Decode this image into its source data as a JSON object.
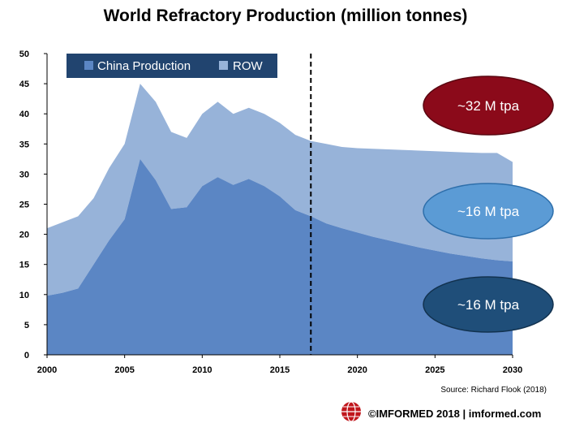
{
  "title": "World Refractory Production (million tonnes)",
  "source": "Source: Richard Flook (2018)",
  "footer": "©IMFORMED 2018  | imformed.com",
  "logo_icon": "globe-logo-icon",
  "colors": {
    "china": "#5b86c4",
    "row": "#97b3d9",
    "legend_bg": "#21446f",
    "ellipse_total": "#8b0a1a",
    "ellipse_row": "#5b9bd5",
    "ellipse_china": "#1f4e79"
  },
  "chart_data": {
    "type": "area",
    "stacked": true,
    "x": [
      2000,
      2001,
      2002,
      2003,
      2004,
      2005,
      2006,
      2007,
      2008,
      2009,
      2010,
      2011,
      2012,
      2013,
      2014,
      2015,
      2016,
      2017,
      2018,
      2019,
      2020,
      2021,
      2022,
      2023,
      2024,
      2025,
      2026,
      2027,
      2028,
      2029,
      2030
    ],
    "series": [
      {
        "name": "China Production",
        "values": [
          9.8,
          10.3,
          11,
          15,
          19,
          22.5,
          32.5,
          29,
          24.2,
          24.5,
          28,
          29.5,
          28.2,
          29.2,
          28,
          26.3,
          24,
          23,
          21.8,
          21,
          20.3,
          19.6,
          19,
          18.4,
          17.8,
          17.3,
          16.8,
          16.4,
          16,
          15.7,
          15.5
        ]
      },
      {
        "name": "ROW",
        "values": [
          11.2,
          11.7,
          12,
          11,
          12,
          12.5,
          12.5,
          13,
          12.8,
          11.5,
          12,
          12.5,
          11.8,
          11.8,
          12,
          12.2,
          12.5,
          12.5,
          13.2,
          13.5,
          14,
          14.6,
          15.1,
          15.6,
          16.1,
          16.5,
          16.9,
          17.2,
          17.5,
          17.8,
          16.5
        ]
      }
    ],
    "xlim": [
      2000,
      2030
    ],
    "ylim": [
      0,
      50
    ],
    "xticks": [
      2000,
      2005,
      2010,
      2015,
      2020,
      2025,
      2030
    ],
    "yticks": [
      0,
      5,
      10,
      15,
      20,
      25,
      30,
      35,
      40,
      45,
      50
    ],
    "divider_x": 2017,
    "legend_position": "top-left",
    "annotations": [
      "~32 M tpa",
      "~16 M tpa",
      "~16 M tpa"
    ]
  }
}
